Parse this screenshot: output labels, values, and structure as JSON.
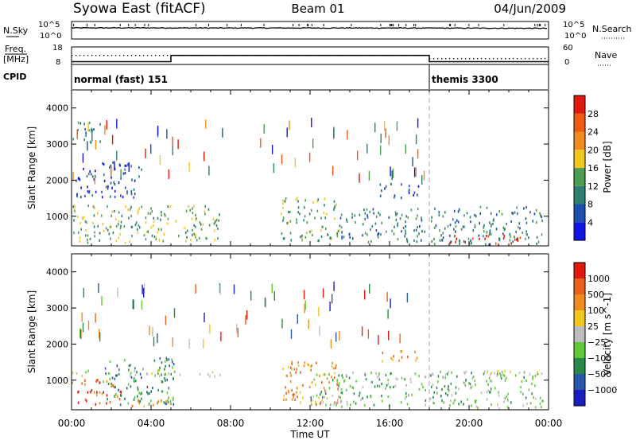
{
  "header": {
    "station": "Syowa East (fitACF)",
    "beam": "Beam 01",
    "date": "04/Jun/2009"
  },
  "strip_labels": {
    "nsky": "N.Sky",
    "nsearch": "N.Search",
    "freq": "Freq.",
    "freq_unit": "[MHz]",
    "nave": "Nave",
    "cpid": "CPID"
  },
  "strip_ticks": {
    "nsky_left": [
      "10^5",
      "10^0"
    ],
    "nsky_right": [
      "10^5",
      "10^0"
    ],
    "freq_left": [
      "18",
      "8"
    ],
    "freq_right": [
      "60",
      "0"
    ]
  },
  "cpid_modes": [
    {
      "label": "normal (fast) 151",
      "start_hour": 0
    },
    {
      "label": "themis 3300",
      "start_hour": 18
    }
  ],
  "colors": {
    "power_scale": [
      "#1414e6",
      "#1e4fae",
      "#2f7e72",
      "#4e9d52",
      "#f0c820",
      "#f08c1e",
      "#ee5a12",
      "#e01a0e"
    ],
    "velocity_scale": [
      "#1a1ec0",
      "#2a58a8",
      "#2a8a4a",
      "#62c83a",
      "#bdbdbd",
      "#f0c820",
      "#f08c1e",
      "#e8601a",
      "#e01a0e"
    ],
    "ground_scatter": "#a9a9a9"
  },
  "chart_data": [
    {
      "type": "line",
      "panel": "N.Sky / N.Search",
      "x": [
        0,
        4,
        8,
        12,
        16,
        18,
        20,
        24
      ],
      "series": [
        {
          "name": "N.Sky",
          "values": [
            1500,
            1500,
            1400,
            1400,
            1400,
            1300,
            1300,
            1100
          ]
        },
        {
          "name": "N.Search",
          "values": [
            200,
            200,
            200,
            200,
            200,
            200,
            200,
            200
          ]
        }
      ],
      "ylim_log": [
        0,
        5
      ]
    },
    {
      "type": "line",
      "panel": "Freq. / Nave",
      "x": [
        0,
        5,
        5,
        18,
        18,
        24
      ],
      "series": [
        {
          "name": "Freq.",
          "values": [
            9.6,
            9.6,
            13.2,
            13.2,
            9.6,
            9.6
          ]
        },
        {
          "name": "Nave",
          "values": [
            31,
            31,
            31,
            31,
            20,
            20
          ]
        }
      ],
      "ylim_left": [
        8,
        18
      ],
      "ylim_right": [
        0,
        60
      ]
    },
    {
      "type": "heatmap",
      "panel": "Power",
      "xlabel": "Time UT",
      "ylabel": "Slant Range [km]",
      "colorbar_label": "Power [dB]",
      "colorbar_ticks": [
        "28",
        "24",
        "20",
        "16",
        "12",
        "8",
        "4"
      ],
      "xlim_hours": [
        0,
        24
      ],
      "ylim_km": [
        180,
        4500
      ],
      "ytick_labels": [
        "1000",
        "2000",
        "3000",
        "4000"
      ],
      "xtick_labels": [
        "00:00",
        "04:00",
        "08:00",
        "12:00",
        "16:00",
        "20:00",
        "00:00"
      ],
      "echo_regions": [
        {
          "t0": 0.0,
          "t1": 5.0,
          "r0": 250,
          "r1": 1300,
          "level": 3
        },
        {
          "t0": 0.2,
          "t1": 3.5,
          "r0": 1500,
          "r1": 2500,
          "level": 1
        },
        {
          "t0": 0.0,
          "t1": 1.5,
          "r0": 3000,
          "r1": 3600,
          "level": 2
        },
        {
          "t0": 5.2,
          "t1": 7.5,
          "r0": 300,
          "r1": 1300,
          "level": 3
        },
        {
          "t0": 10.5,
          "t1": 13.5,
          "r0": 300,
          "r1": 1500,
          "level": 3
        },
        {
          "t0": 13.5,
          "t1": 17.8,
          "r0": 250,
          "r1": 1200,
          "level": 2
        },
        {
          "t0": 15.5,
          "t1": 17.5,
          "r0": 1500,
          "r1": 1900,
          "level": 1
        },
        {
          "t0": 18.0,
          "t1": 23.7,
          "r0": 200,
          "r1": 1250,
          "level": 2
        },
        {
          "t0": 19.0,
          "t1": 22.6,
          "r0": 200,
          "r1": 450,
          "level": 7
        }
      ]
    },
    {
      "type": "heatmap",
      "panel": "Velocity",
      "xlabel": "Time UT",
      "ylabel": "Slant Range [km]",
      "colorbar_label": "Velocity [m s^-1]",
      "colorbar_ticks": [
        "1000",
        "500",
        "100",
        "25",
        "−25",
        "−100",
        "−500",
        "−1000"
      ],
      "xlim_hours": [
        0,
        24
      ],
      "ylim_km": [
        180,
        4500
      ],
      "ytick_labels": [
        "1000",
        "2000",
        "3000",
        "4000"
      ],
      "xtick_labels": [
        "00:00",
        "04:00",
        "08:00",
        "12:00",
        "16:00",
        "20:00",
        "00:00"
      ],
      "echo_regions": [
        {
          "t0": 0.0,
          "t1": 2.5,
          "r0": 300,
          "r1": 1000,
          "level": 7
        },
        {
          "t0": 1.5,
          "t1": 5.2,
          "r0": 300,
          "r1": 1600,
          "level": 2
        },
        {
          "t0": 3.0,
          "t1": 5.2,
          "r0": 250,
          "r1": 500,
          "level": 6
        },
        {
          "t0": 0.0,
          "t1": 7.5,
          "r0": 1100,
          "r1": 1250,
          "level": 4
        },
        {
          "t0": 10.5,
          "t1": 13.5,
          "r0": 300,
          "r1": 1500,
          "level": 6
        },
        {
          "t0": 12.0,
          "t1": 17.8,
          "r0": 250,
          "r1": 1200,
          "level": 3
        },
        {
          "t0": 15.5,
          "t1": 17.5,
          "r0": 1500,
          "r1": 1800,
          "level": 6
        },
        {
          "t0": 18.0,
          "t1": 23.7,
          "r0": 200,
          "r1": 1250,
          "level": 3
        },
        {
          "t0": 18.0,
          "t1": 23.7,
          "r0": 1100,
          "r1": 1250,
          "level": 4
        }
      ]
    }
  ]
}
